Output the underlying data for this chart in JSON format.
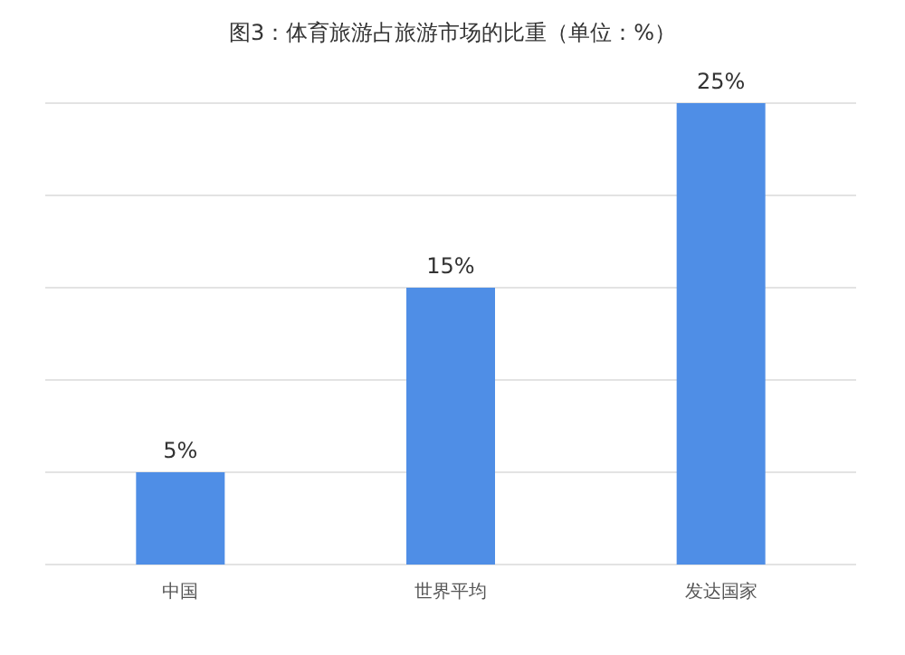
{
  "chart_data": {
    "type": "bar",
    "title": "图3：体育旅游占旅游市场的比重（单位：%）",
    "categories": [
      "中国",
      "世界平均",
      "发达国家"
    ],
    "values": [
      5,
      15,
      25
    ],
    "value_labels": [
      "5%",
      "15%",
      "25%"
    ],
    "color": "#4f8ee6",
    "ylim": [
      0,
      25
    ],
    "yticks": [
      {
        "value": 0,
        "label": null
      },
      {
        "value": 5,
        "label": null
      },
      {
        "value": 10,
        "label": null
      },
      {
        "value": 15,
        "label": null
      },
      {
        "value": 20,
        "label": null
      },
      {
        "value": 25,
        "label": null
      }
    ],
    "grid": "y",
    "tick_labels": "x"
  }
}
